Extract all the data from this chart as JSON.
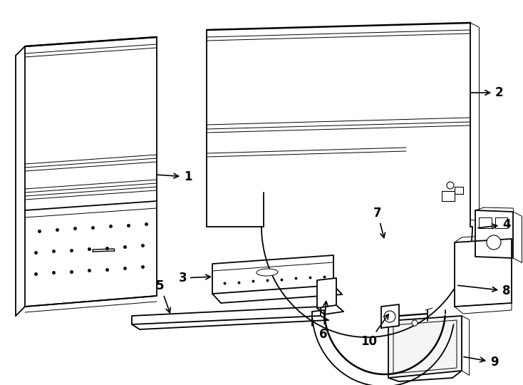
{
  "background_color": "#ffffff",
  "line_color": "#000000",
  "figure_width": 7.34,
  "figure_height": 5.4,
  "dpi": 100,
  "lw_main": 1.3,
  "lw_thin": 0.7,
  "lw_thick": 1.8
}
